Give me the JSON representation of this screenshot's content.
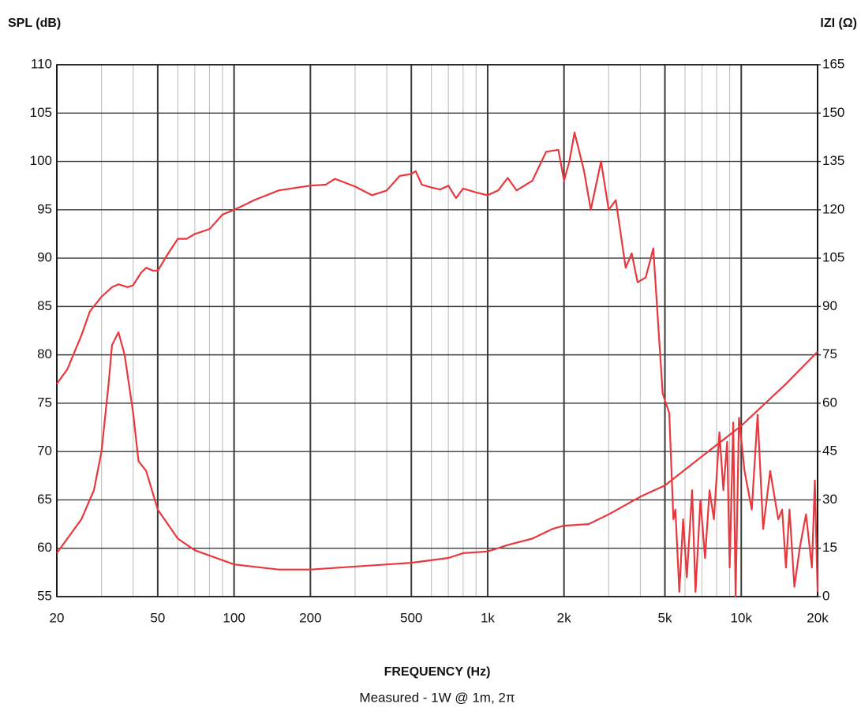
{
  "chart_data": {
    "type": "line",
    "ylabel": "SPL (dB)",
    "y2label": "IZI (Ω)",
    "xlabel": "FREQUENCY (Hz)",
    "subtitle": "Measured - 1W @ 1m, 2π",
    "xscale": "log",
    "xlim": [
      20,
      20000
    ],
    "xticks": [
      20,
      50,
      100,
      200,
      500,
      {
        "value": 1000,
        "label": "1k"
      },
      {
        "value": 2000,
        "label": "2k"
      },
      {
        "value": 5000,
        "label": "5k"
      },
      {
        "value": 10000,
        "label": "10k"
      },
      {
        "value": 20000,
        "label": "20k"
      }
    ],
    "xminorticks": [
      30,
      40,
      60,
      70,
      80,
      90,
      300,
      400,
      600,
      700,
      800,
      900,
      3000,
      4000,
      6000,
      7000,
      8000,
      9000
    ],
    "ylim": [
      55,
      110
    ],
    "yticks": [
      55,
      60,
      65,
      70,
      75,
      80,
      85,
      90,
      95,
      100,
      105,
      110
    ],
    "y2lim": [
      0,
      165
    ],
    "y2ticks": [
      0,
      15,
      30,
      45,
      60,
      75,
      90,
      105,
      120,
      135,
      150,
      165
    ],
    "grid": true,
    "series": [
      {
        "name": "SPL",
        "color": "#e8383d",
        "axis": "y",
        "x": [
          20,
          22,
          25,
          27,
          30,
          33,
          35,
          38,
          40,
          43,
          45,
          48,
          50,
          55,
          60,
          65,
          70,
          80,
          90,
          100,
          110,
          120,
          150,
          200,
          230,
          250,
          300,
          350,
          400,
          450,
          500,
          520,
          550,
          600,
          650,
          700,
          750,
          800,
          900,
          1000,
          1100,
          1200,
          1300,
          1500,
          1700,
          1900,
          2000,
          2100,
          2200,
          2400,
          2550,
          2800,
          3000,
          3200,
          3500,
          3700,
          3900,
          4200,
          4500,
          4900,
          5200,
          5400,
          5500,
          5700,
          5900,
          6100,
          6400,
          6600,
          6900,
          7200,
          7500,
          7800,
          8200,
          8500,
          8800,
          9000,
          9300,
          9500,
          9800,
          10300,
          11000,
          11600,
          12200,
          13000,
          14000,
          14500,
          15000,
          15500,
          16200,
          17000,
          18000,
          19000,
          19500,
          20000
        ],
        "values": [
          77,
          78.5,
          82,
          84.5,
          86,
          87,
          87.3,
          87,
          87.2,
          88.5,
          89,
          88.7,
          88.7,
          90.5,
          92,
          92,
          92.5,
          93,
          94.5,
          95,
          95.5,
          96,
          97,
          97.5,
          97.6,
          98.2,
          97.4,
          96.5,
          97,
          98.5,
          98.7,
          99,
          97.6,
          97.3,
          97.1,
          97.5,
          96.2,
          97.2,
          96.8,
          96.5,
          97,
          98.3,
          97,
          98,
          101,
          101.2,
          98,
          100,
          103,
          99,
          95,
          100,
          95,
          96,
          89,
          90.5,
          87.5,
          88,
          91,
          76,
          74,
          63,
          64,
          55.5,
          63,
          57,
          66,
          55.5,
          65,
          59,
          66,
          63,
          72,
          66,
          71,
          58,
          73,
          55,
          73.5,
          68,
          64,
          73.8,
          62,
          68,
          63,
          64,
          58,
          64,
          56,
          60,
          63.5,
          58,
          67,
          55.5
        ]
      },
      {
        "name": "Impedance",
        "color": "#e8383d",
        "axis": "y2",
        "x": [
          20,
          25,
          28,
          30,
          32,
          33,
          35,
          37,
          40,
          42,
          45,
          50,
          60,
          70,
          100,
          150,
          200,
          500,
          700,
          800,
          1000,
          1200,
          1500,
          1800,
          2000,
          2500,
          3000,
          4000,
          5000,
          7000,
          10000,
          15000,
          20000
        ],
        "values": [
          13.5,
          24,
          33,
          45,
          66,
          78,
          82,
          75,
          57,
          42,
          39,
          27,
          18,
          14.4,
          10,
          8.4,
          8.4,
          10.5,
          12,
          13.5,
          14,
          16,
          18,
          21,
          22,
          22.5,
          25.5,
          31,
          34.5,
          43.5,
          53,
          66,
          76
        ]
      }
    ]
  }
}
